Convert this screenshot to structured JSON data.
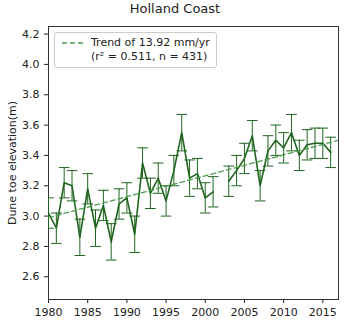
{
  "chart_data": {
    "type": "line",
    "title": "Holland Coast",
    "y_label": "Dune toe elevation(m)",
    "x": [
      1980,
      1981,
      1982,
      1983,
      1984,
      1985,
      1986,
      1987,
      1988,
      1989,
      1990,
      1991,
      1992,
      1993,
      1994,
      1995,
      1996,
      1997,
      1998,
      1999,
      2000,
      2001,
      2002,
      2003,
      2004,
      2005,
      2006,
      2007,
      2008,
      2009,
      2010,
      2011,
      2012,
      2013,
      2014,
      2015,
      2016
    ],
    "series": [
      {
        "color": "#1f651f",
        "marker": "none",
        "line_style": "solid",
        "values": [
          3.02,
          2.92,
          3.22,
          3.2,
          2.86,
          3.18,
          2.92,
          3.07,
          2.83,
          3.08,
          3.12,
          2.88,
          3.35,
          3.15,
          3.25,
          3.1,
          3.3,
          3.55,
          3.25,
          3.28,
          3.12,
          3.16,
          null,
          3.23,
          3.3,
          3.38,
          3.53,
          3.2,
          3.43,
          3.5,
          3.45,
          3.55,
          3.4,
          3.47,
          3.48,
          3.48,
          3.42
        ],
        "errors": [
          0.1,
          0.1,
          0.1,
          0.1,
          0.12,
          0.1,
          0.12,
          0.1,
          0.12,
          0.1,
          0.1,
          0.12,
          0.1,
          0.1,
          0.1,
          0.1,
          0.1,
          0.12,
          0.12,
          0.1,
          0.1,
          0.1,
          null,
          0.1,
          0.1,
          0.1,
          0.1,
          0.1,
          0.1,
          0.1,
          0.1,
          0.12,
          0.1,
          0.1,
          0.1,
          0.1,
          0.1
        ]
      },
      {
        "name": "Trend of 13.92 mm/yr",
        "annotation": "(r² = 0.511, n = 431)",
        "color": "#4e9a4e",
        "line_style": "dashed",
        "x": [
          1980,
          2017
        ],
        "values": [
          2.99,
          3.5
        ]
      }
    ],
    "xlim": [
      1980,
      2017
    ],
    "xticks": [
      1980,
      1985,
      1990,
      1995,
      2000,
      2005,
      2010,
      2015
    ],
    "ylim": [
      2.45,
      4.25
    ],
    "yticks": [
      2.6,
      2.8,
      {
        "value": 3.0,
        "label": "3.0"
      },
      3.2,
      3.4,
      3.6,
      3.8,
      {
        "value": 4.0,
        "label": "4.0"
      },
      4.2
    ],
    "legend": "upper left",
    "grid": false
  }
}
